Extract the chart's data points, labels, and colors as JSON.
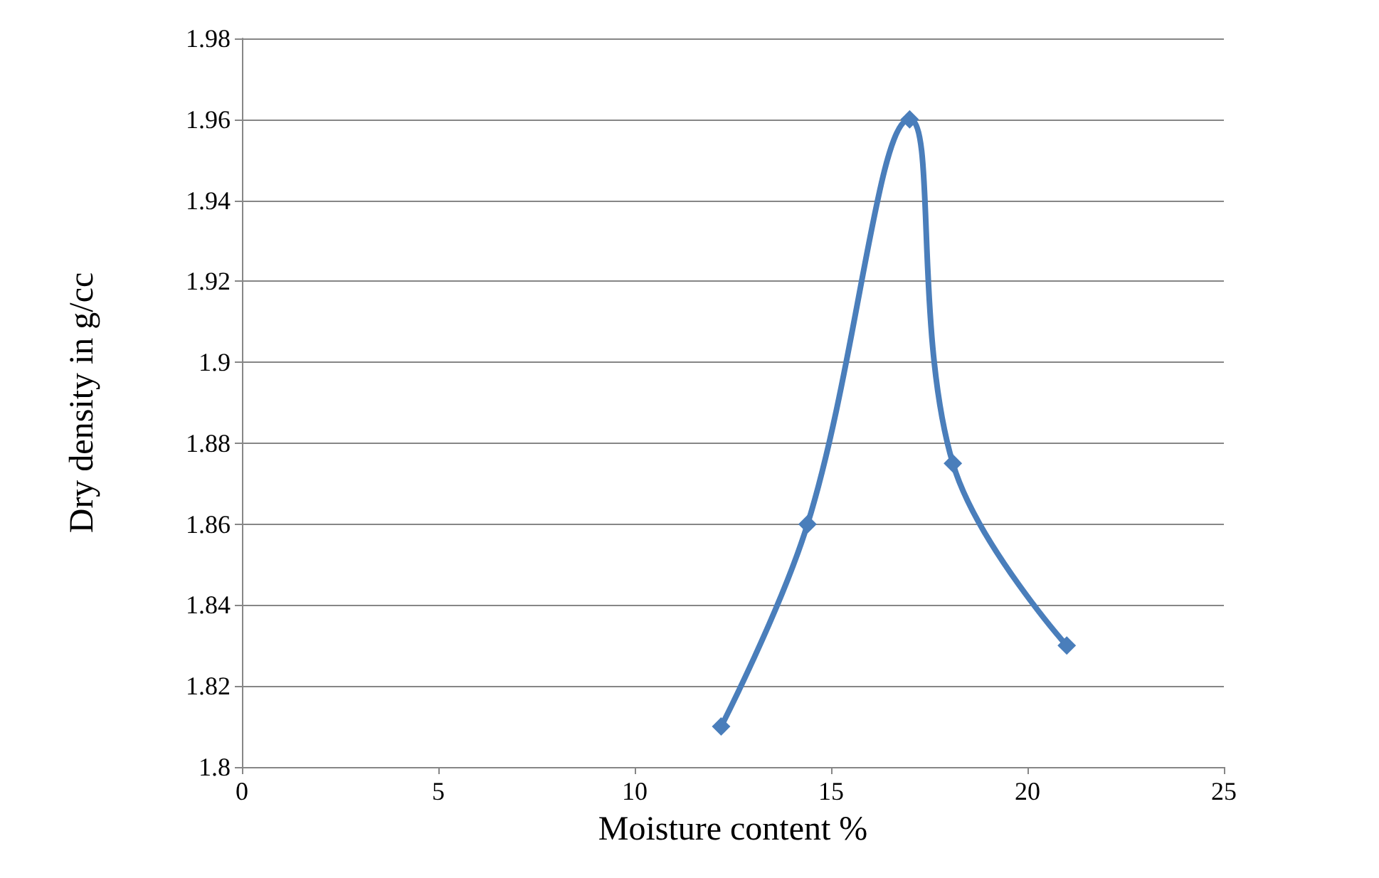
{
  "chart_data": {
    "type": "line",
    "xlabel": "Moisture content %",
    "ylabel": "Dry density in g/cc",
    "x": [
      12.2,
      14.4,
      17.0,
      18.1,
      21.0
    ],
    "series": [
      {
        "color": "#4a7ebb",
        "values": [
          1.81,
          1.86,
          1.96,
          1.875,
          1.83
        ]
      }
    ],
    "xlim": [
      0,
      25
    ],
    "xticks": [
      0,
      5,
      10,
      15,
      20,
      25
    ],
    "ylim": [
      1.8,
      1.98
    ],
    "yticks": [
      1.8,
      1.82,
      1.84,
      1.86,
      1.88,
      1.9,
      1.92,
      1.94,
      1.96,
      1.98
    ],
    "grid": "y",
    "marker": "diamond",
    "line_style": "solid"
  }
}
